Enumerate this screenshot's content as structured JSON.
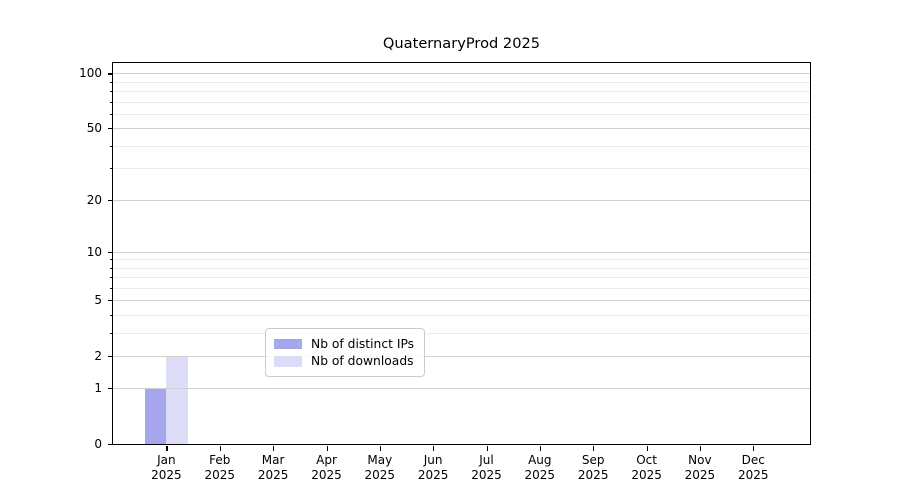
{
  "figure": {
    "title": "QuaternaryProd 2025"
  },
  "legend": {
    "items": [
      {
        "label": "Nb of distinct IPs",
        "color": "#a6a6ef"
      },
      {
        "label": "Nb of downloads",
        "color": "#dcdcf7"
      }
    ]
  },
  "chart_data": {
    "type": "bar",
    "title": "QuaternaryProd 2025",
    "x_categories": [
      "Jan",
      "Feb",
      "Mar",
      "Apr",
      "May",
      "Jun",
      "Jul",
      "Aug",
      "Sep",
      "Oct",
      "Nov",
      "Dec"
    ],
    "x_year": "2025",
    "series": [
      {
        "name": "Nb of distinct IPs",
        "color": "#a6a6ef",
        "values": [
          1,
          0,
          0,
          0,
          0,
          0,
          0,
          0,
          0,
          0,
          0,
          0
        ]
      },
      {
        "name": "Nb of downloads",
        "color": "#dcdcf7",
        "values": [
          2,
          0,
          0,
          0,
          0,
          0,
          0,
          0,
          0,
          0,
          0,
          0
        ]
      }
    ],
    "yscale": "log1p",
    "ylim": [
      0,
      113
    ],
    "y_major_ticks": [
      0,
      1,
      2,
      5,
      10,
      20,
      50,
      100
    ],
    "y_minor_ticks": [
      3,
      4,
      6,
      7,
      8,
      9,
      30,
      40,
      60,
      70,
      80,
      90
    ],
    "grid": "horizontal",
    "legend_position": "lower center",
    "xlabel": "",
    "ylabel": ""
  }
}
